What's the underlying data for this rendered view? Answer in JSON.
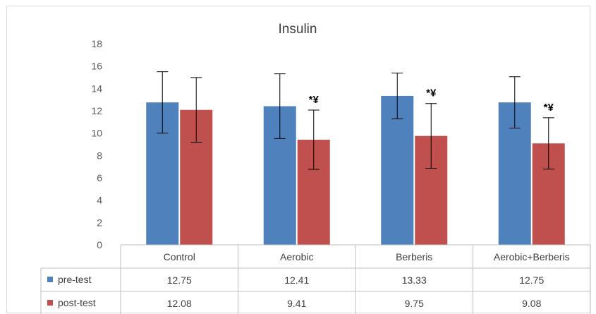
{
  "chart_data": {
    "type": "bar",
    "title": "Insulin",
    "categories": [
      "Control",
      "Aerobic",
      "Berberis",
      "Aerobic+Berberis"
    ],
    "ylim": [
      0,
      18
    ],
    "yticks": [
      0,
      2,
      4,
      6,
      8,
      10,
      12,
      14,
      16,
      18
    ],
    "grid": false,
    "legend": "data-table-left",
    "series": [
      {
        "name": "pre-test",
        "color": "#4f81bd",
        "values": [
          12.75,
          12.41,
          13.33,
          12.75
        ],
        "value_labels": [
          "12.75",
          "12.41",
          "13.33",
          "12.75"
        ],
        "errors": [
          2.75,
          2.9,
          2.05,
          2.3
        ],
        "markers": [
          "",
          "",
          "",
          ""
        ]
      },
      {
        "name": "post-test",
        "color": "#c0504d",
        "values": [
          12.08,
          9.41,
          9.75,
          9.08
        ],
        "value_labels": [
          "12.08",
          "9.41",
          "9.75",
          "9.08"
        ],
        "errors": [
          2.9,
          2.65,
          2.9,
          2.3
        ],
        "markers": [
          "",
          "*¥",
          "*¥",
          "*¥"
        ]
      }
    ]
  }
}
